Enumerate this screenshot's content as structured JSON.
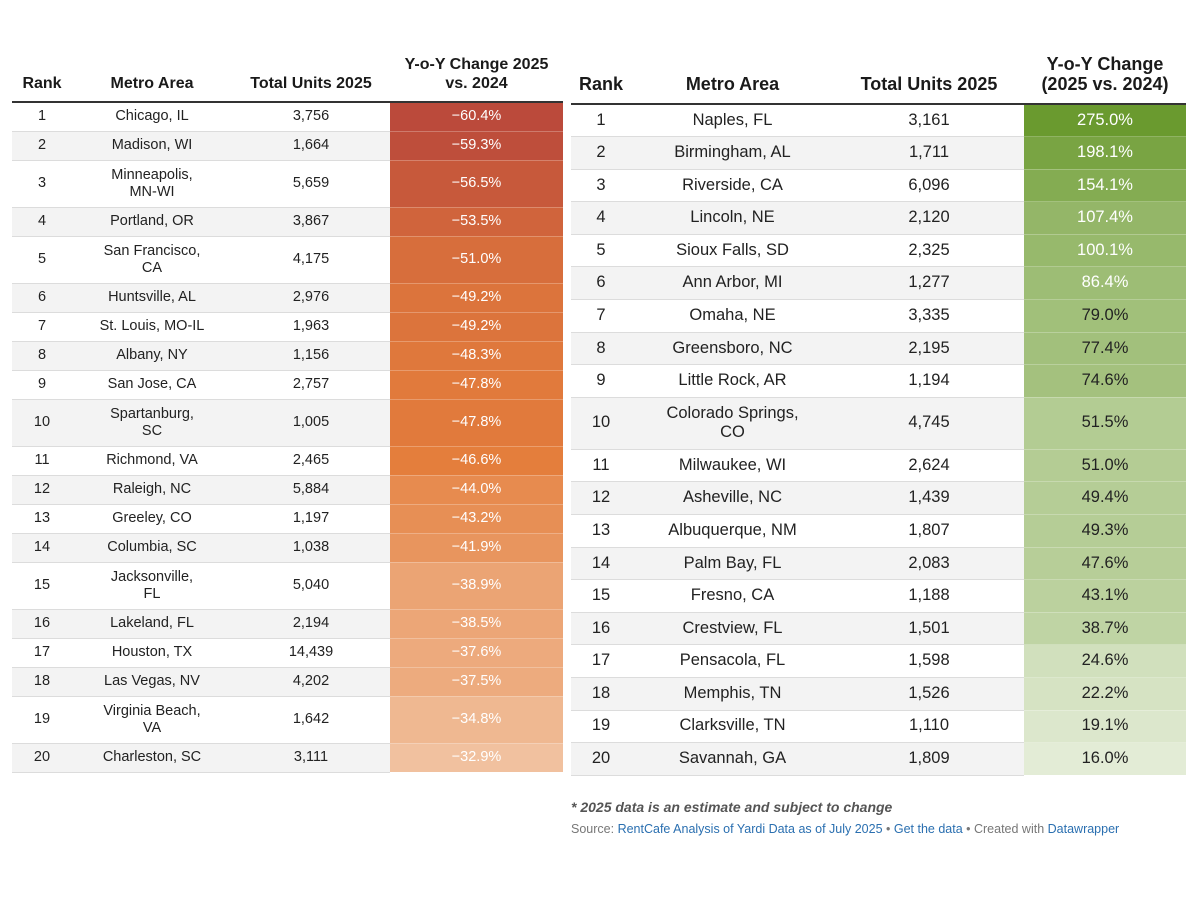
{
  "chart_data": [
    {
      "type": "table",
      "columns": [
        "Rank",
        "Metro Area",
        "Total Units 2025",
        "Y-o-Y Change 2025 vs. 2024"
      ],
      "rows": [
        {
          "rank": "1",
          "metro": "Chicago, IL",
          "units": "3,756",
          "change": "−60.4%"
        },
        {
          "rank": "2",
          "metro": "Madison, WI",
          "units": "1,664",
          "change": "−59.3%"
        },
        {
          "rank": "3",
          "metro": "Minneapolis, MN-WI",
          "units": "5,659",
          "change": "−56.5%"
        },
        {
          "rank": "4",
          "metro": "Portland, OR",
          "units": "3,867",
          "change": "−53.5%"
        },
        {
          "rank": "5",
          "metro": "San Francisco, CA",
          "units": "4,175",
          "change": "−51.0%"
        },
        {
          "rank": "6",
          "metro": "Huntsville, AL",
          "units": "2,976",
          "change": "−49.2%"
        },
        {
          "rank": "7",
          "metro": "St. Louis, MO-IL",
          "units": "1,963",
          "change": "−49.2%"
        },
        {
          "rank": "8",
          "metro": "Albany, NY",
          "units": "1,156",
          "change": "−48.3%"
        },
        {
          "rank": "9",
          "metro": "San Jose, CA",
          "units": "2,757",
          "change": "−47.8%"
        },
        {
          "rank": "10",
          "metro": "Spartanburg, SC",
          "units": "1,005",
          "change": "−47.8%"
        },
        {
          "rank": "11",
          "metro": "Richmond, VA",
          "units": "2,465",
          "change": "−46.6%"
        },
        {
          "rank": "12",
          "metro": "Raleigh, NC",
          "units": "5,884",
          "change": "−44.0%"
        },
        {
          "rank": "13",
          "metro": "Greeley, CO",
          "units": "1,197",
          "change": "−43.2%"
        },
        {
          "rank": "14",
          "metro": "Columbia, SC",
          "units": "1,038",
          "change": "−41.9%"
        },
        {
          "rank": "15",
          "metro": "Jacksonville, FL",
          "units": "5,040",
          "change": "−38.9%"
        },
        {
          "rank": "16",
          "metro": "Lakeland, FL",
          "units": "2,194",
          "change": "−38.5%"
        },
        {
          "rank": "17",
          "metro": "Houston, TX",
          "units": "14,439",
          "change": "−37.6%"
        },
        {
          "rank": "18",
          "metro": "Las Vegas, NV",
          "units": "4,202",
          "change": "−37.5%"
        },
        {
          "rank": "19",
          "metro": "Virginia Beach, VA",
          "units": "1,642",
          "change": "−34.8%"
        },
        {
          "rank": "20",
          "metro": "Charleston, SC",
          "units": "3,111",
          "change": "−32.9%"
        }
      ],
      "color_scale": [
        "#bb4a3b",
        "#e47e3c",
        "#f1c19f"
      ]
    },
    {
      "type": "table",
      "columns": [
        "Rank",
        "Metro Area",
        "Total Units 2025",
        "Y-o-Y Change (2025 vs. 2024)"
      ],
      "rows": [
        {
          "rank": "1",
          "metro": "Naples, FL",
          "units": "3,161",
          "change": "275.0%"
        },
        {
          "rank": "2",
          "metro": "Birmingham, AL",
          "units": "1,711",
          "change": "198.1%"
        },
        {
          "rank": "3",
          "metro": "Riverside, CA",
          "units": "6,096",
          "change": "154.1%"
        },
        {
          "rank": "4",
          "metro": "Lincoln, NE",
          "units": "2,120",
          "change": "107.4%"
        },
        {
          "rank": "5",
          "metro": "Sioux Falls, SD",
          "units": "2,325",
          "change": "100.1%"
        },
        {
          "rank": "6",
          "metro": "Ann Arbor, MI",
          "units": "1,277",
          "change": "86.4%"
        },
        {
          "rank": "7",
          "metro": "Omaha, NE",
          "units": "3,335",
          "change": "79.0%"
        },
        {
          "rank": "8",
          "metro": "Greensboro, NC",
          "units": "2,195",
          "change": "77.4%"
        },
        {
          "rank": "9",
          "metro": "Little Rock, AR",
          "units": "1,194",
          "change": "74.6%"
        },
        {
          "rank": "10",
          "metro": "Colorado Springs, CO",
          "units": "4,745",
          "change": "51.5%"
        },
        {
          "rank": "11",
          "metro": "Milwaukee, WI",
          "units": "2,624",
          "change": "51.0%"
        },
        {
          "rank": "12",
          "metro": "Asheville, NC",
          "units": "1,439",
          "change": "49.4%"
        },
        {
          "rank": "13",
          "metro": "Albuquerque, NM",
          "units": "1,807",
          "change": "49.3%"
        },
        {
          "rank": "14",
          "metro": "Palm Bay, FL",
          "units": "2,083",
          "change": "47.6%"
        },
        {
          "rank": "15",
          "metro": "Fresno, CA",
          "units": "1,188",
          "change": "43.1%"
        },
        {
          "rank": "16",
          "metro": "Crestview, FL",
          "units": "1,501",
          "change": "38.7%"
        },
        {
          "rank": "17",
          "metro": "Pensacola, FL",
          "units": "1,598",
          "change": "24.6%"
        },
        {
          "rank": "18",
          "metro": "Memphis, TN",
          "units": "1,526",
          "change": "22.2%"
        },
        {
          "rank": "19",
          "metro": "Clarksville, TN",
          "units": "1,110",
          "change": "19.1%"
        },
        {
          "rank": "20",
          "metro": "Savannah, GA",
          "units": "1,809",
          "change": "16.0%"
        }
      ],
      "color_scale": [
        "#6a9a2f",
        "#a9c585",
        "#e3ecd6"
      ]
    }
  ],
  "footnote": "* 2025 data is an estimate and subject to change",
  "source": {
    "prefix": "Source: ",
    "source_link": "RentCafe Analysis of Yardi Data as of July 2025",
    "sep1": " • ",
    "get_data": "Get the data",
    "sep2": " • Created with ",
    "datawrapper": "Datawrapper"
  }
}
